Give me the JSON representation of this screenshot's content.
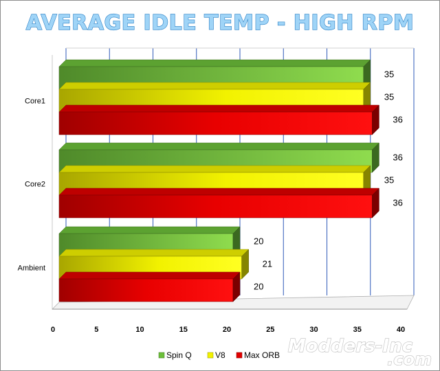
{
  "chart_data": {
    "type": "bar",
    "orientation": "horizontal",
    "style": "3d",
    "title": "AVERAGE IDLE TEMP - HIGH RPM",
    "categories": [
      "Core1",
      "Core2",
      "Ambient"
    ],
    "series": [
      {
        "name": "Spin Q",
        "values": [
          35,
          36,
          20
        ],
        "color": "#6cbf3a"
      },
      {
        "name": "V8",
        "values": [
          35,
          35,
          21
        ],
        "color": "#f2f200"
      },
      {
        "name": "Max ORB",
        "values": [
          36,
          36,
          20
        ],
        "color": "#e00000"
      }
    ],
    "xlim": [
      0,
      40
    ],
    "xticks": [
      0,
      5,
      10,
      15,
      20,
      25,
      30,
      35,
      40
    ],
    "grid": true,
    "legend_position": "bottom"
  },
  "watermark": {
    "line1": "Modders-Inc",
    "line2": ".com"
  }
}
